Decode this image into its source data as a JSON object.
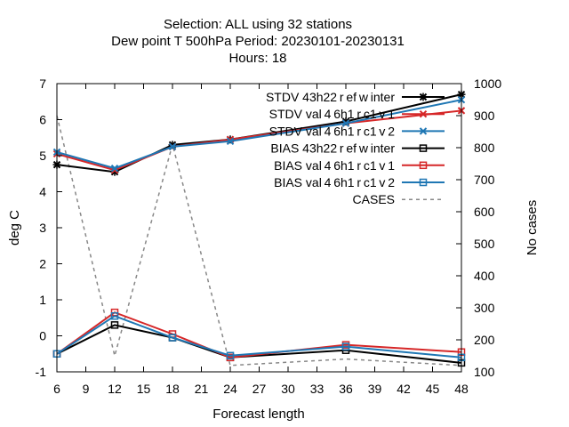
{
  "chart_data": {
    "type": "line",
    "title_lines": [
      "Selection: ALL using    32 stations",
      "Dew point T 500hPa   Period: 20230101-20230131",
      "Hours:  18"
    ],
    "xlabel": "Forecast length",
    "ylabel": "deg C",
    "y2label": "No cases",
    "xlim": [
      6,
      48
    ],
    "ylim": [
      -1,
      7
    ],
    "y2lim": [
      100,
      1000
    ],
    "xticks": [
      "6",
      "9",
      "12",
      "15",
      "18",
      "21",
      "24",
      "27",
      "30",
      "33",
      "36",
      "39",
      "42",
      "45",
      "48"
    ],
    "yticks": [
      "-1",
      "0",
      "1",
      "2",
      "3",
      "4",
      "5",
      "6",
      "7"
    ],
    "y2ticks": [
      "100",
      "200",
      "300",
      "400",
      "500",
      "600",
      "700",
      "800",
      "900",
      "1000"
    ],
    "x": [
      6,
      12,
      18,
      24,
      36,
      48
    ],
    "legend_position": "top-right",
    "series": [
      {
        "name": "STDV 43h22_ref_winter",
        "legend": "STDV 43h22 r ef w inter",
        "color": "#000000",
        "marker": "star",
        "dash": "",
        "axis": "y",
        "values": [
          4.75,
          4.55,
          5.3,
          5.45,
          5.95,
          6.7
        ]
      },
      {
        "name": "STDV val46h1_rc1v1",
        "legend": "STDV val 4 6h1 r c1 v 1",
        "color": "#d62728",
        "marker": "x",
        "dash": "",
        "axis": "y",
        "values": [
          5.05,
          4.6,
          5.25,
          5.45,
          5.9,
          6.25
        ]
      },
      {
        "name": "STDV val46h1_rc1v2",
        "legend": "STDV val 4 6h1 r c1 v 2",
        "color": "#1f77b4",
        "marker": "x",
        "dash": "",
        "axis": "y",
        "values": [
          5.1,
          4.65,
          5.25,
          5.4,
          5.9,
          6.55
        ]
      },
      {
        "name": "BIAS 43h22_ref_winter",
        "legend": "BIAS 43h22 r ef w inter",
        "color": "#000000",
        "marker": "square",
        "dash": "",
        "axis": "y",
        "values": [
          -0.5,
          0.3,
          -0.05,
          -0.6,
          -0.4,
          -0.75
        ]
      },
      {
        "name": "BIAS val46h1_rc1v1",
        "legend": "BIAS val 4 6h1 r c1 v 1",
        "color": "#d62728",
        "marker": "square",
        "dash": "",
        "axis": "y",
        "values": [
          -0.5,
          0.65,
          0.05,
          -0.6,
          -0.25,
          -0.45
        ]
      },
      {
        "name": "BIAS val46h1_rc1v2",
        "legend": "BIAS val 4 6h1 r c1 v 2",
        "color": "#1f77b4",
        "marker": "square",
        "dash": "",
        "axis": "y",
        "values": [
          -0.5,
          0.55,
          -0.05,
          -0.55,
          -0.3,
          -0.6
        ]
      },
      {
        "name": "CASES",
        "legend": "CASES",
        "color": "#888888",
        "marker": "none",
        "dash": "4,4",
        "axis": "y2",
        "values": [
          900,
          150,
          810,
          120,
          140,
          120
        ]
      }
    ]
  }
}
